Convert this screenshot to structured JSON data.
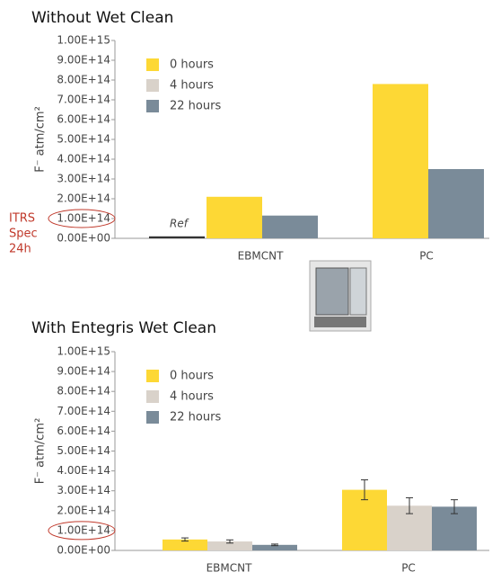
{
  "chart_data": [
    {
      "type": "bar",
      "title": "Without Wet Clean",
      "y_label": "F⁻ atm/cm²",
      "categories": [
        "EBMCNT",
        "PC"
      ],
      "series": [
        {
          "name": "0 hours",
          "color": "#fdd835",
          "values": [
            210000000000000.0,
            780000000000000.0
          ]
        },
        {
          "name": "4 hours",
          "color": "#d9d2ca",
          "values": [
            null,
            null
          ]
        },
        {
          "name": "22 hours",
          "color": "#7a8b99",
          "values": [
            115000000000000.0,
            350000000000000.0
          ]
        }
      ],
      "ref_bar": {
        "label": "Ref",
        "value": 10000000000000.0,
        "color": "#333333"
      },
      "annotation_lines": [
        "ITRS",
        "Spec",
        "24h"
      ],
      "ylim": [
        0,
        1000000000000000.0
      ],
      "yticks": [
        {
          "value": 0,
          "label": "0.00E+00"
        },
        {
          "value": 100000000000000.0,
          "label": "1.00E+14"
        },
        {
          "value": 200000000000000.0,
          "label": "2.00E+14"
        },
        {
          "value": 300000000000000.0,
          "label": "3.00E+14"
        },
        {
          "value": 400000000000000.0,
          "label": "4.00E+14"
        },
        {
          "value": 500000000000000.0,
          "label": "5.00E+14"
        },
        {
          "value": 600000000000000.0,
          "label": "6.00E+14"
        },
        {
          "value": 700000000000000.0,
          "label": "7.00E+14"
        },
        {
          "value": 800000000000000.0,
          "label": "8.00E+14"
        },
        {
          "value": 900000000000000.0,
          "label": "9.00E+14"
        },
        {
          "value": 1000000000000000.0,
          "label": "1.00E+15"
        }
      ]
    },
    {
      "type": "bar",
      "title": "With Entegris Wet Clean",
      "y_label": "F⁻ atm/cm²",
      "categories": [
        "EBMCNT",
        "PC"
      ],
      "series": [
        {
          "name": "0 hours",
          "color": "#fdd835",
          "values": [
            55000000000000.0,
            305000000000000.0
          ],
          "errors": [
            8000000000000.0,
            50000000000000.0
          ]
        },
        {
          "name": "4 hours",
          "color": "#d9d2ca",
          "values": [
            45000000000000.0,
            225000000000000.0
          ],
          "errors": [
            8000000000000.0,
            40000000000000.0
          ]
        },
        {
          "name": "22 hours",
          "color": "#7a8b99",
          "values": [
            28000000000000.0,
            220000000000000.0
          ],
          "errors": [
            4000000000000.0,
            35000000000000.0
          ]
        }
      ],
      "ylim": [
        0,
        1000000000000000.0
      ],
      "yticks": [
        {
          "value": 0,
          "label": "0.00E+00"
        },
        {
          "value": 100000000000000.0,
          "label": "1.00E+14"
        },
        {
          "value": 200000000000000.0,
          "label": "2.00E+14"
        },
        {
          "value": 300000000000000.0,
          "label": "3.00E+14"
        },
        {
          "value": 400000000000000.0,
          "label": "4.00E+14"
        },
        {
          "value": 500000000000000.0,
          "label": "5.00E+14"
        },
        {
          "value": 600000000000000.0,
          "label": "6.00E+14"
        },
        {
          "value": 700000000000000.0,
          "label": "7.00E+14"
        },
        {
          "value": 800000000000000.0,
          "label": "8.00E+14"
        },
        {
          "value": 900000000000000.0,
          "label": "9.00E+14"
        },
        {
          "value": 1000000000000000.0,
          "label": "1.00E+15"
        }
      ]
    }
  ]
}
